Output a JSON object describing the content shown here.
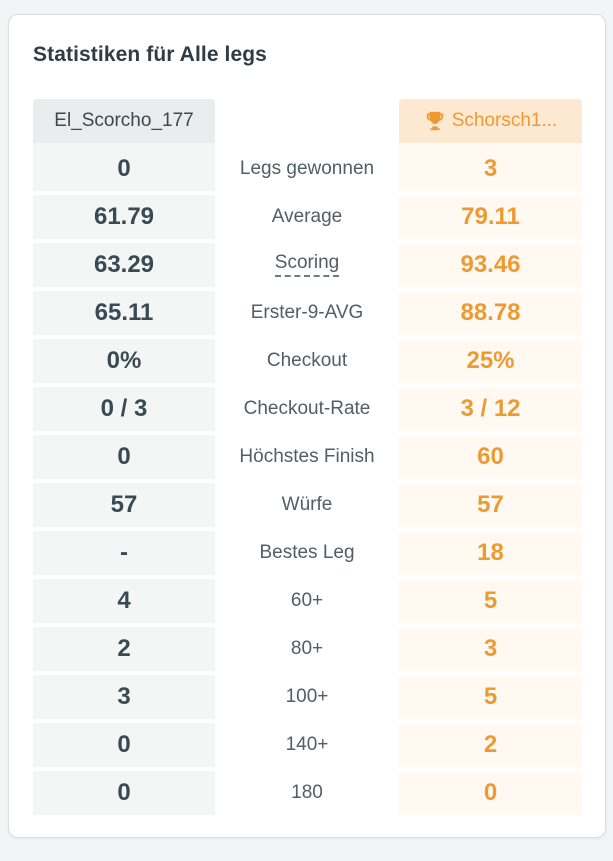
{
  "card": {
    "title": "Statistiken für Alle legs"
  },
  "players": {
    "left": {
      "name": "El_Scorcho_177"
    },
    "right": {
      "name": "Schorsch1...",
      "winner_icon": "trophy-icon"
    }
  },
  "colors": {
    "accent": "#ee9a32",
    "left_text": "#3a4a55",
    "label_text": "#4f5e68"
  },
  "stats": [
    {
      "label": "Legs gewonnen",
      "left": "0",
      "right": "3",
      "dashed": false
    },
    {
      "label": "Average",
      "left": "61.79",
      "right": "79.11",
      "dashed": false
    },
    {
      "label": "Scoring",
      "left": "63.29",
      "right": "93.46",
      "dashed": true
    },
    {
      "label": "Erster-9-AVG",
      "left": "65.11",
      "right": "88.78",
      "dashed": false
    },
    {
      "label": "Checkout",
      "left": "0%",
      "right": "25%",
      "dashed": false
    },
    {
      "label": "Checkout-Rate",
      "left": "0 / 3",
      "right": "3 / 12",
      "dashed": false
    },
    {
      "label": "Höchstes Finish",
      "left": "0",
      "right": "60",
      "dashed": false
    },
    {
      "label": "Würfe",
      "left": "57",
      "right": "57",
      "dashed": false
    },
    {
      "label": "Bestes Leg",
      "left": "-",
      "right": "18",
      "dashed": false
    },
    {
      "label": "60+",
      "left": "4",
      "right": "5",
      "dashed": false
    },
    {
      "label": "80+",
      "left": "2",
      "right": "3",
      "dashed": false
    },
    {
      "label": "100+",
      "left": "3",
      "right": "5",
      "dashed": false
    },
    {
      "label": "140+",
      "left": "0",
      "right": "2",
      "dashed": false
    },
    {
      "label": "180",
      "left": "0",
      "right": "0",
      "dashed": false
    }
  ]
}
